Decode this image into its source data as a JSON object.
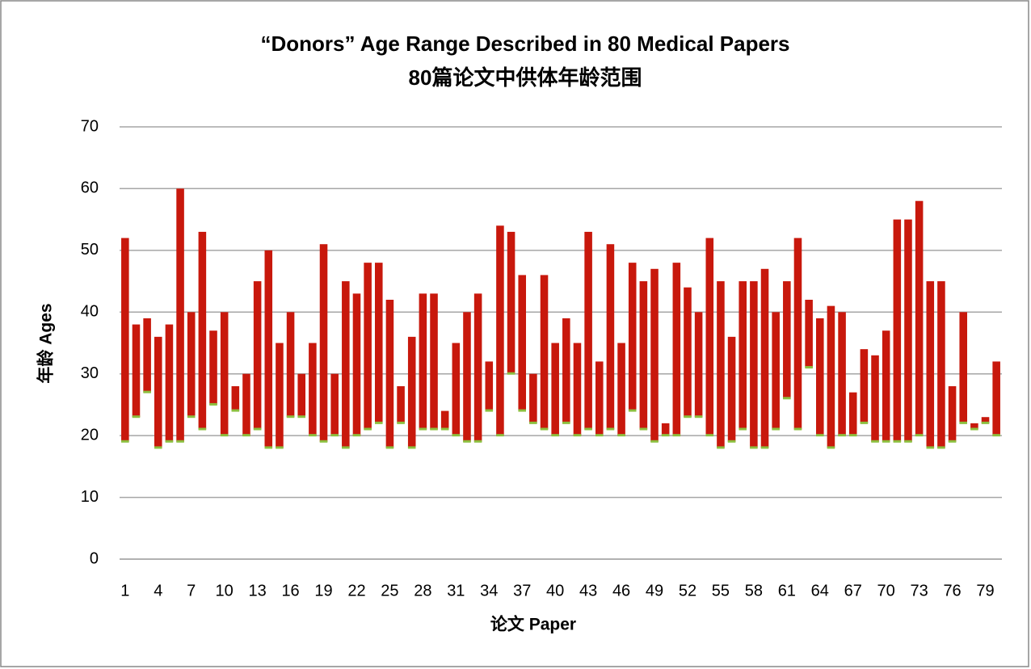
{
  "chart_data": {
    "type": "range_bar",
    "title": "“Donors” Age Range Described in 80 Medical Papers",
    "subtitle": "80篇论文中供体年龄范围",
    "x_label": "论文 Paper",
    "y_label": "年龄 Ages",
    "categories": [
      "1",
      null,
      null,
      "4",
      null,
      null,
      "7",
      null,
      null,
      "10",
      null,
      null,
      "13",
      null,
      null,
      "16",
      null,
      null,
      "19",
      null,
      null,
      "22",
      null,
      null,
      "25",
      null,
      null,
      "28",
      null,
      null,
      "31",
      null,
      null,
      "34",
      null,
      null,
      "37",
      null,
      null,
      "40",
      null,
      null,
      "43",
      null,
      null,
      "46",
      null,
      null,
      "49",
      null,
      null,
      "52",
      null,
      null,
      "55",
      null,
      null,
      "58",
      null,
      null,
      "61",
      null,
      null,
      "64",
      null,
      null,
      "67",
      null,
      null,
      "70",
      null,
      null,
      "73",
      null,
      null,
      "76",
      null,
      null,
      "79",
      null
    ],
    "series": [
      {
        "color": "#8cbf3f",
        "values": [
          19,
          23,
          27,
          18,
          19,
          19,
          23,
          21,
          25,
          20,
          24,
          20,
          21,
          18,
          18,
          23,
          23,
          20,
          19,
          20,
          18,
          20,
          21,
          22,
          18,
          22,
          18,
          21,
          21,
          21,
          20,
          19,
          19,
          24,
          20,
          30,
          24,
          22,
          21,
          20,
          22,
          20,
          21,
          20,
          21,
          20,
          24,
          21,
          19,
          20,
          20,
          23,
          23,
          20,
          18,
          19,
          21,
          18,
          18,
          21,
          26,
          21,
          31,
          20,
          18,
          20,
          20,
          22,
          19,
          19,
          19,
          19,
          20,
          18,
          18,
          19,
          22,
          21,
          22,
          20
        ]
      },
      {
        "color": "#c8180c",
        "values": [
          52,
          38,
          39,
          36,
          38,
          60,
          40,
          53,
          37,
          40,
          28,
          30,
          45,
          50,
          35,
          40,
          30,
          35,
          51,
          30,
          45,
          43,
          48,
          48,
          42,
          28,
          36,
          43,
          43,
          24,
          35,
          40,
          43,
          32,
          54,
          53,
          46,
          30,
          46,
          35,
          39,
          35,
          53,
          32,
          51,
          35,
          48,
          45,
          47,
          22,
          48,
          44,
          40,
          52,
          45,
          36,
          45,
          45,
          47,
          40,
          45,
          52,
          42,
          39,
          41,
          40,
          27,
          34,
          33,
          37,
          55,
          55,
          58,
          45,
          45,
          28,
          40,
          22,
          23,
          32
        ]
      }
    ],
    "ylim": [
      0,
      70
    ],
    "yticks": [
      0,
      10,
      20,
      30,
      40,
      50,
      60,
      70
    ],
    "grid": true
  }
}
